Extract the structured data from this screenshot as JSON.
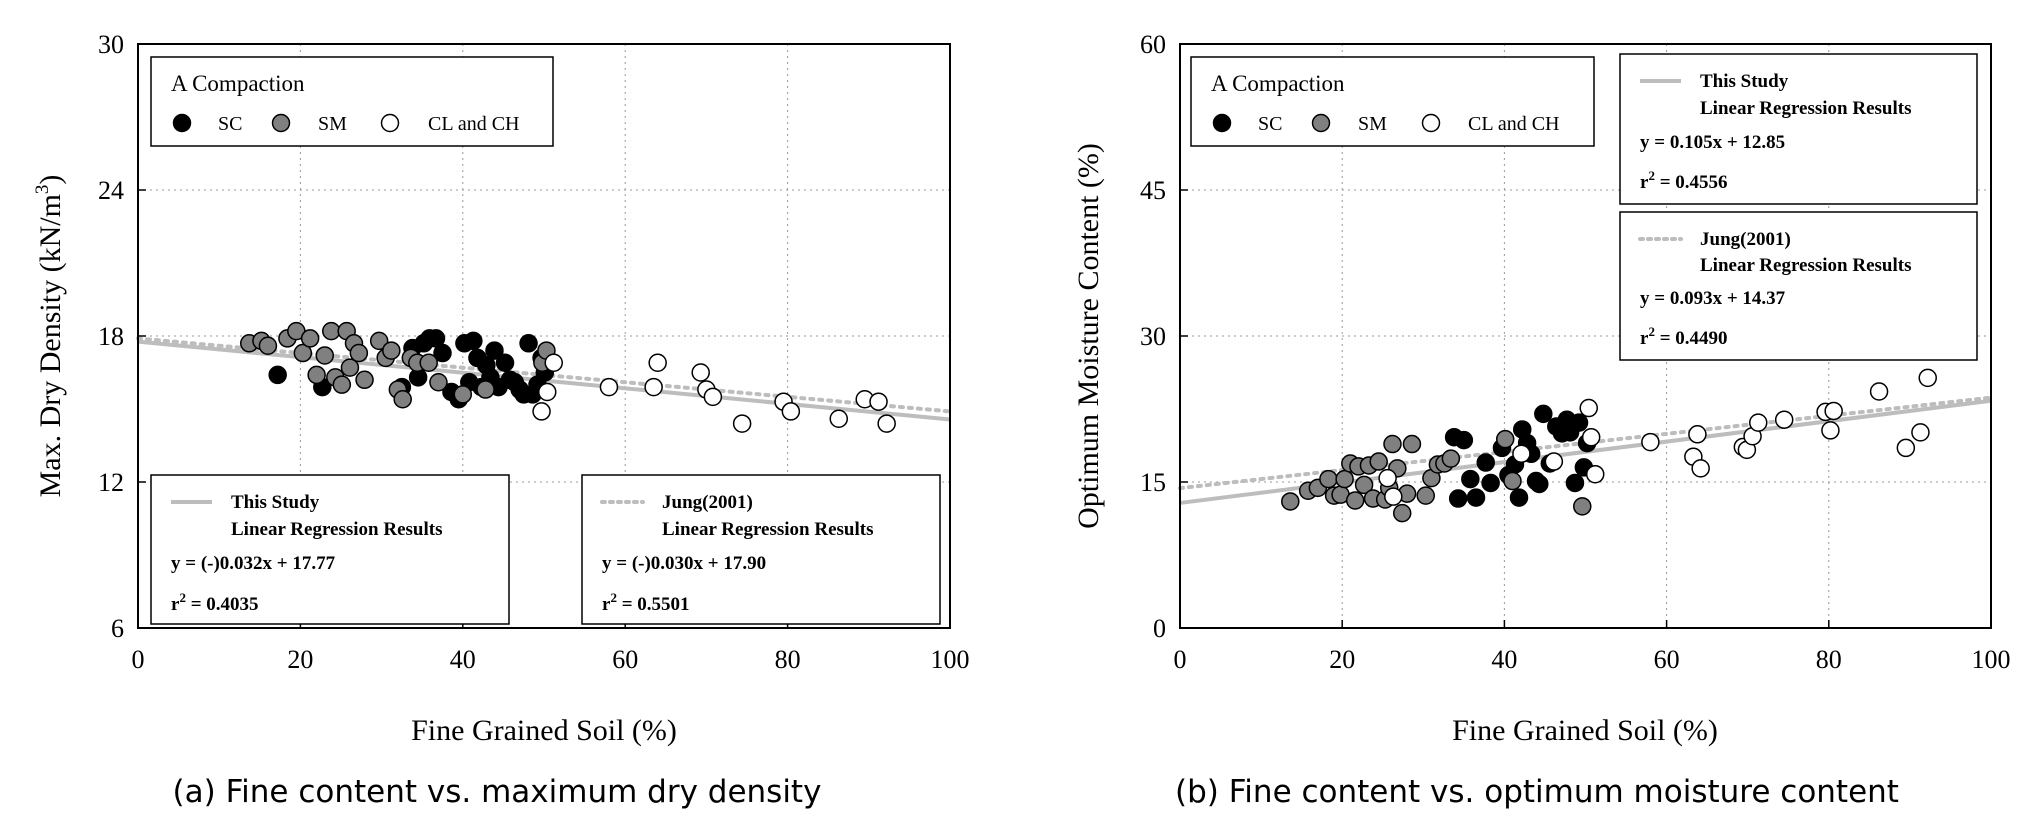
{
  "chart_data": [
    {
      "type": "scatter",
      "panel_id": "a",
      "caption": "(a) Fine content vs. maximum dry density",
      "xlabel": "Fine Grained Soil (%)",
      "ylabel": "Max. Dry Density (kN/m",
      "ylabel_sup": "3",
      "ylabel_end": ")",
      "xlim": [
        0,
        100
      ],
      "ylim": [
        6,
        30
      ],
      "xticks": [
        "0",
        "20",
        "40",
        "60",
        "80",
        "100"
      ],
      "yticks": [
        "6",
        "12",
        "18",
        "24",
        "30"
      ],
      "grid": true,
      "legend": {
        "title": "A Compaction",
        "entries": [
          {
            "name": "SC",
            "fill": "#000000"
          },
          {
            "name": "SM",
            "fill": "#808080"
          },
          {
            "name": "CL and CH",
            "fill": "#ffffff"
          }
        ]
      },
      "series": [
        {
          "name": "SC",
          "fill": "#000000",
          "points": [
            [
              17.2,
              16.4
            ],
            [
              22.7,
              15.9
            ],
            [
              32.5,
              15.9
            ],
            [
              33.8,
              17.5
            ],
            [
              34.5,
              16.3
            ],
            [
              35.2,
              17.7
            ],
            [
              35.9,
              17.9
            ],
            [
              36.7,
              17.9
            ],
            [
              37.5,
              17.3
            ],
            [
              38.6,
              15.7
            ],
            [
              39.5,
              15.4
            ],
            [
              40.2,
              17.7
            ],
            [
              40.8,
              16.1
            ],
            [
              41.3,
              17.8
            ],
            [
              41.8,
              17.1
            ],
            [
              42.3,
              15.9
            ],
            [
              42.9,
              16.8
            ],
            [
              43.4,
              16.3
            ],
            [
              43.9,
              17.4
            ],
            [
              44.4,
              15.9
            ],
            [
              45.2,
              16.9
            ],
            [
              45.8,
              16.2
            ],
            [
              46.4,
              16.1
            ],
            [
              47.0,
              15.8
            ],
            [
              47.5,
              15.6
            ],
            [
              48.1,
              17.7
            ],
            [
              48.6,
              15.6
            ],
            [
              49.2,
              16.0
            ],
            [
              49.7,
              17.1
            ],
            [
              50.1,
              16.5
            ]
          ]
        },
        {
          "name": "SM",
          "fill": "#808080",
          "points": [
            [
              13.7,
              17.7
            ],
            [
              15.2,
              17.8
            ],
            [
              16.0,
              17.6
            ],
            [
              18.4,
              17.9
            ],
            [
              19.5,
              18.2
            ],
            [
              20.3,
              17.3
            ],
            [
              21.2,
              17.9
            ],
            [
              22.0,
              16.4
            ],
            [
              23.0,
              17.2
            ],
            [
              23.8,
              18.2
            ],
            [
              24.3,
              16.3
            ],
            [
              25.1,
              16.0
            ],
            [
              25.7,
              18.2
            ],
            [
              26.1,
              16.7
            ],
            [
              26.6,
              17.7
            ],
            [
              27.2,
              17.3
            ],
            [
              27.9,
              16.2
            ],
            [
              29.7,
              17.8
            ],
            [
              30.5,
              17.1
            ],
            [
              31.2,
              17.4
            ],
            [
              32.0,
              15.8
            ],
            [
              32.6,
              15.4
            ],
            [
              33.6,
              17.1
            ],
            [
              34.4,
              16.9
            ],
            [
              35.8,
              16.9
            ],
            [
              37.0,
              16.1
            ],
            [
              40.0,
              15.6
            ],
            [
              42.8,
              15.8
            ],
            [
              49.8,
              16.9
            ],
            [
              50.3,
              17.4
            ]
          ]
        },
        {
          "name": "CL and CH",
          "fill": "#ffffff",
          "points": [
            [
              49.7,
              14.9
            ],
            [
              50.4,
              15.7
            ],
            [
              51.2,
              16.9
            ],
            [
              58.0,
              15.9
            ],
            [
              63.5,
              15.9
            ],
            [
              64.0,
              16.9
            ],
            [
              69.3,
              16.5
            ],
            [
              70.0,
              15.8
            ],
            [
              70.8,
              15.5
            ],
            [
              74.4,
              14.4
            ],
            [
              79.5,
              15.3
            ],
            [
              80.4,
              14.9
            ],
            [
              86.3,
              14.6
            ],
            [
              89.5,
              15.4
            ],
            [
              91.2,
              15.3
            ],
            [
              92.2,
              14.4
            ]
          ]
        }
      ],
      "regression": [
        {
          "name": "This Study",
          "style": "solid",
          "color": "#bdbdbd",
          "slope": -0.032,
          "intercept": 17.77,
          "label_line1": "This Study",
          "label_line2": "Linear Regression Results",
          "equation": "y = (-)0.032x + 17.77",
          "r2_prefix": "r",
          "r2_sup": "2",
          "r2_value": " = 0.4035"
        },
        {
          "name": "Jung(2001)",
          "style": "dotted",
          "color": "#bdbdbd",
          "slope": -0.03,
          "intercept": 17.9,
          "label_line1": "Jung(2001)",
          "label_line2": "Linear Regression Results",
          "equation": "y = (-)0.030x + 17.90",
          "r2_prefix": "r",
          "r2_sup": "2",
          "r2_value": " = 0.5501"
        }
      ]
    },
    {
      "type": "scatter",
      "panel_id": "b",
      "caption": "(b) Fine content vs. optimum moisture content",
      "xlabel": "Fine Grained Soil (%)",
      "ylabel": "Optimum Moisture Content (%)",
      "ylabel_sup": "",
      "ylabel_end": "",
      "xlim": [
        0,
        100
      ],
      "ylim": [
        0,
        60
      ],
      "xticks": [
        "0",
        "20",
        "40",
        "60",
        "80",
        "100"
      ],
      "yticks": [
        "0",
        "15",
        "30",
        "45",
        "60"
      ],
      "grid": true,
      "legend": {
        "title": "A Compaction",
        "entries": [
          {
            "name": "SC",
            "fill": "#000000"
          },
          {
            "name": "SM",
            "fill": "#808080"
          },
          {
            "name": "CL and CH",
            "fill": "#ffffff"
          }
        ]
      },
      "series": [
        {
          "name": "SC",
          "fill": "#000000",
          "points": [
            [
              33.8,
              19.6
            ],
            [
              34.3,
              13.3
            ],
            [
              35.0,
              19.3
            ],
            [
              35.8,
              15.3
            ],
            [
              36.5,
              13.4
            ],
            [
              37.7,
              17.0
            ],
            [
              38.3,
              14.9
            ],
            [
              39.7,
              18.5
            ],
            [
              40.5,
              15.7
            ],
            [
              41.3,
              16.8
            ],
            [
              41.8,
              13.4
            ],
            [
              42.2,
              20.4
            ],
            [
              42.8,
              19.0
            ],
            [
              43.3,
              17.9
            ],
            [
              43.9,
              15.1
            ],
            [
              44.3,
              14.8
            ],
            [
              44.8,
              22.0
            ],
            [
              45.6,
              16.9
            ],
            [
              46.4,
              20.7
            ],
            [
              47.1,
              20.0
            ],
            [
              47.7,
              21.4
            ],
            [
              48.1,
              20.1
            ],
            [
              48.7,
              14.9
            ],
            [
              49.2,
              21.1
            ],
            [
              49.8,
              16.5
            ],
            [
              50.2,
              19.0
            ]
          ]
        },
        {
          "name": "SM",
          "fill": "#808080",
          "points": [
            [
              13.6,
              13.0
            ],
            [
              15.8,
              14.1
            ],
            [
              17.0,
              14.4
            ],
            [
              18.3,
              15.3
            ],
            [
              19.0,
              13.6
            ],
            [
              19.8,
              13.7
            ],
            [
              20.3,
              15.3
            ],
            [
              21.0,
              16.9
            ],
            [
              21.6,
              13.1
            ],
            [
              22.0,
              16.6
            ],
            [
              22.7,
              14.7
            ],
            [
              23.3,
              16.7
            ],
            [
              23.8,
              13.3
            ],
            [
              24.5,
              17.1
            ],
            [
              25.3,
              13.2
            ],
            [
              25.8,
              14.4
            ],
            [
              26.2,
              18.9
            ],
            [
              26.8,
              16.4
            ],
            [
              27.4,
              11.8
            ],
            [
              28.0,
              13.8
            ],
            [
              28.6,
              18.9
            ],
            [
              30.3,
              13.6
            ],
            [
              31.0,
              15.4
            ],
            [
              31.8,
              16.8
            ],
            [
              32.6,
              16.9
            ],
            [
              33.4,
              17.4
            ],
            [
              40.1,
              19.4
            ],
            [
              41.0,
              15.1
            ],
            [
              49.6,
              12.5
            ]
          ]
        },
        {
          "name": "CL and CH",
          "fill": "#ffffff",
          "points": [
            [
              25.6,
              15.4
            ],
            [
              26.3,
              13.5
            ],
            [
              42.1,
              17.9
            ],
            [
              46.1,
              17.1
            ],
            [
              50.4,
              22.6
            ],
            [
              50.7,
              19.6
            ],
            [
              51.2,
              15.8
            ],
            [
              58.0,
              19.1
            ],
            [
              63.3,
              17.6
            ],
            [
              63.8,
              19.9
            ],
            [
              64.2,
              16.4
            ],
            [
              69.4,
              18.6
            ],
            [
              69.9,
              18.3
            ],
            [
              70.6,
              19.7
            ],
            [
              71.3,
              21.1
            ],
            [
              74.5,
              21.4
            ],
            [
              79.6,
              22.2
            ],
            [
              80.2,
              20.3
            ],
            [
              80.6,
              22.3
            ],
            [
              86.2,
              24.3
            ],
            [
              89.5,
              18.5
            ],
            [
              91.3,
              20.1
            ],
            [
              92.2,
              25.7
            ]
          ]
        }
      ],
      "regression": [
        {
          "name": "This Study",
          "style": "solid",
          "color": "#bdbdbd",
          "slope": 0.105,
          "intercept": 12.85,
          "label_line1": "This Study",
          "label_line2": "Linear Regression Results",
          "equation": "y = 0.105x + 12.85",
          "r2_prefix": "r",
          "r2_sup": "2",
          "r2_value": " = 0.4556"
        },
        {
          "name": "Jung(2001)",
          "style": "dotted",
          "color": "#bdbdbd",
          "slope": 0.093,
          "intercept": 14.37,
          "label_line1": "Jung(2001)",
          "label_line2": "Linear Regression Results",
          "equation": "y = 0.093x + 14.37",
          "r2_prefix": "r",
          "r2_sup": "2",
          "r2_value": " = 0.4490"
        }
      ]
    }
  ]
}
